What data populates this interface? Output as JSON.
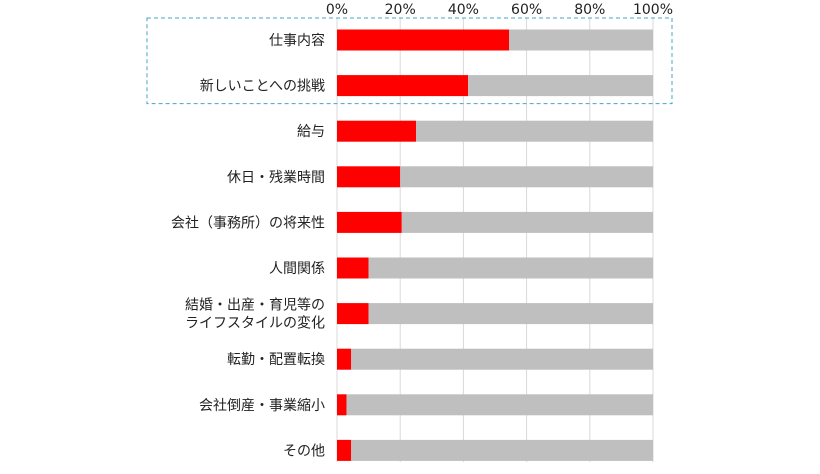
{
  "chart_data": {
    "type": "bar",
    "orientation": "horizontal",
    "stacked": "100%",
    "categories": [
      [
        "仕事内容"
      ],
      [
        "新しいことへの挑戦"
      ],
      [
        "給与"
      ],
      [
        "休日・残業時間"
      ],
      [
        "会社（事務所）の将来性"
      ],
      [
        "人間関係"
      ],
      [
        "結婚・出産・育児等の",
        "ライフスタイルの変化"
      ],
      [
        "転勤・配置転換"
      ],
      [
        "会社倒産・事業縮小"
      ],
      [
        "その他"
      ]
    ],
    "series": [
      {
        "values": [
          54.5,
          41.5,
          25,
          20,
          20.5,
          10,
          10,
          4.5,
          3,
          4.5
        ]
      },
      {
        "values": [
          45.5,
          58.5,
          75,
          80,
          79.5,
          90,
          90,
          95.5,
          97,
          95.5
        ]
      }
    ],
    "xticks": [
      "0%",
      "20%",
      "40%",
      "60%",
      "80%",
      "100%"
    ],
    "xlim": [
      0,
      100
    ],
    "grid": true,
    "highlight": {
      "categories": [
        0,
        1
      ],
      "style": "dashed box"
    },
    "colors": {
      "primary": "#ff0000",
      "remainder": "#bfbfbf",
      "grid": "#d9d9d9",
      "highlight": "#4aa3c8"
    }
  }
}
